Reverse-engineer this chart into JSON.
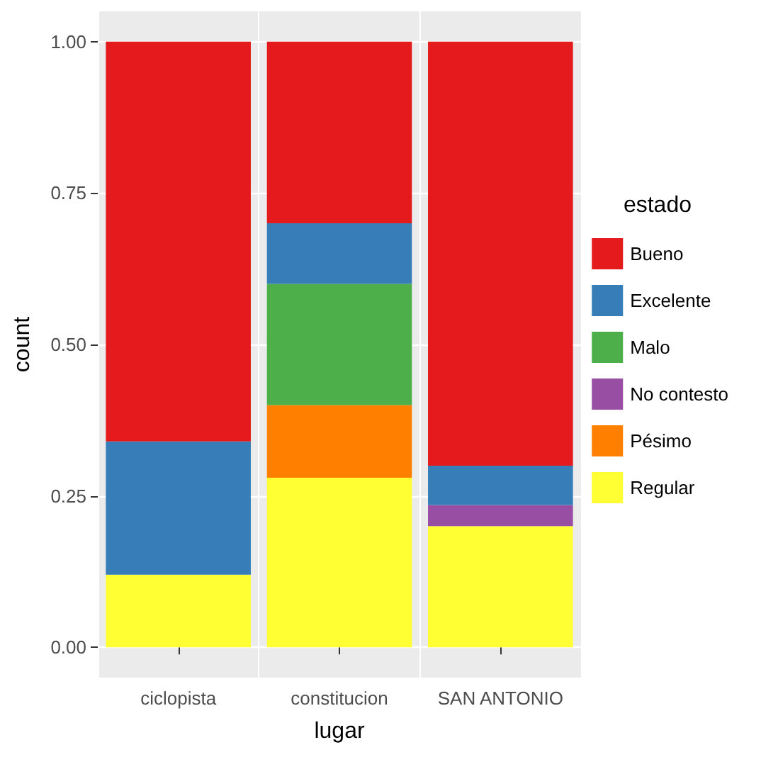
{
  "chart_data": {
    "type": "bar",
    "stacked": true,
    "xlabel": "lugar",
    "ylabel": "count",
    "legend_title": "estado",
    "legend": "right",
    "grid": true,
    "categories": [
      "ciclopista",
      "constitucion",
      "SAN ANTONIO"
    ],
    "ylim": [
      -0.05,
      1.05
    ],
    "yticks": [
      {
        "value": 0,
        "label": "0.00"
      },
      {
        "value": 0.25,
        "label": "0.25"
      },
      {
        "value": 0.5,
        "label": "0.50"
      },
      {
        "value": 0.75,
        "label": "0.75"
      },
      {
        "value": 1,
        "label": "1.00"
      }
    ],
    "series": [
      {
        "name": "Regular",
        "color": "#ffff33",
        "values": [
          0.12,
          0.28,
          0.2
        ]
      },
      {
        "name": "Pésimo",
        "color": "#ff7f00",
        "values": [
          null,
          0.12,
          null
        ]
      },
      {
        "name": "No contesto",
        "color": "#984ea3",
        "values": [
          null,
          null,
          0.035
        ]
      },
      {
        "name": "Malo",
        "color": "#4daf4a",
        "values": [
          null,
          0.2,
          null
        ]
      },
      {
        "name": "Excelente",
        "color": "#377eb8",
        "values": [
          0.22,
          0.1,
          0.065
        ]
      },
      {
        "name": "Bueno",
        "color": "#e41a1c",
        "values": [
          0.66,
          0.3,
          0.7
        ]
      }
    ]
  }
}
